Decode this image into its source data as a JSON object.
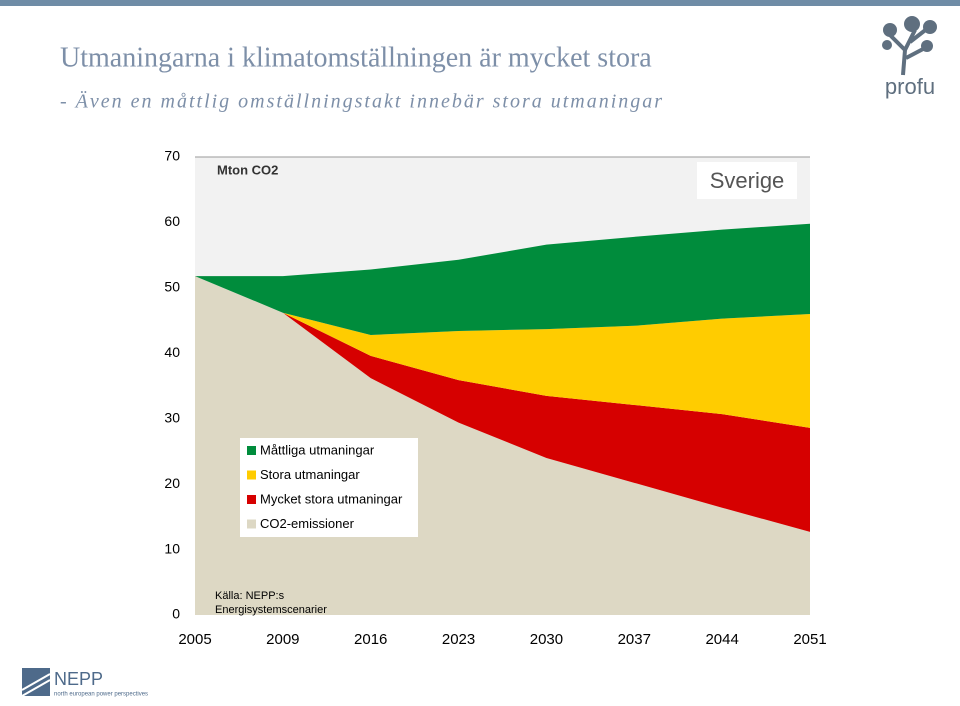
{
  "slide": {
    "title": "Utmaningarna i klimatomställningen är mycket stora",
    "subtitle": "- Även en måttlig omställningstakt innebär stora utmaningar",
    "logo_right": "profu",
    "logo_left": "NEPP",
    "logo_left_tagline": "north european power perspectives"
  },
  "chart_data": {
    "type": "stacked-area",
    "ylabel": "Mton CO2",
    "annotation": "Sverige",
    "source": [
      "Källa: NEPP:s",
      "Energisystemscenarier"
    ],
    "categories": [
      "2005",
      "2009",
      "2016",
      "2023",
      "2030",
      "2037",
      "2044",
      "2051"
    ],
    "ylim": [
      0,
      70
    ],
    "yticks": [
      0,
      10,
      20,
      30,
      40,
      50,
      60,
      70
    ],
    "grid": false,
    "legend": "lower-left",
    "series": [
      {
        "name": "CO2-emissioner",
        "color": "#ddd8c4",
        "values": [
          51.8,
          46.2,
          36.2,
          29.4,
          24.0,
          20.2,
          16.4,
          12.7
        ]
      },
      {
        "name": "Mycket stora utmaningar",
        "color": "#d60000",
        "values": [
          0,
          0,
          3.4,
          6.5,
          9.5,
          11.9,
          14.3,
          15.9
        ]
      },
      {
        "name": "Stora utmaningar",
        "color": "#ffcc00",
        "values": [
          0,
          0,
          3.2,
          7.5,
          10.2,
          12.1,
          14.6,
          17.4
        ]
      },
      {
        "name": "Måttliga utmaningar",
        "color": "#008c3c",
        "values": [
          0,
          5.6,
          10.0,
          10.9,
          12.9,
          13.6,
          13.6,
          13.8
        ]
      }
    ]
  }
}
